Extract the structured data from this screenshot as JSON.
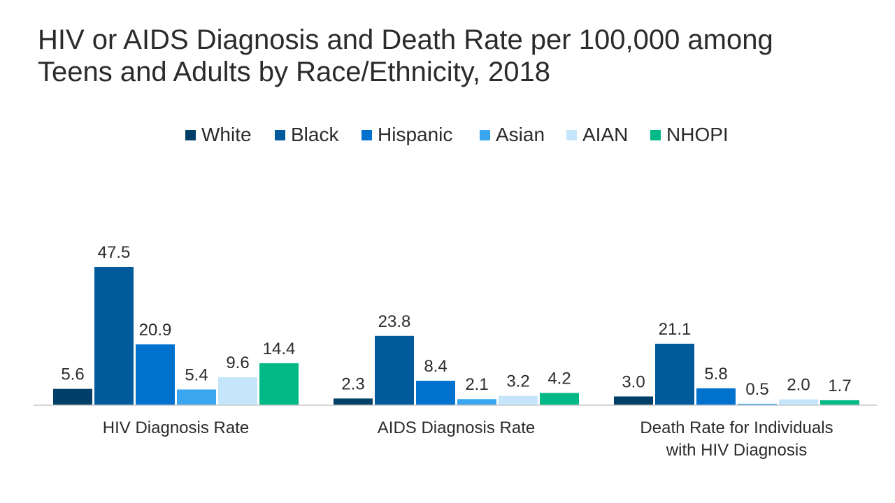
{
  "title_lines": [
    "HIV or AIDS Diagnosis and Death Rate per 100,000 among",
    "Teens and Adults by Race/Ethnicity, 2018"
  ],
  "colors": {
    "White": "#003f68",
    "Black": "#005a9c",
    "Hispanic": "#0072ce",
    "Asian": "#3aa6f0",
    "AIAN": "#c5e5fb",
    "NHOPI": "#00b986"
  },
  "chart_data": {
    "type": "bar",
    "title": "HIV or AIDS Diagnosis and Death Rate per 100,000 among Teens and Adults by Race/Ethnicity, 2018",
    "categories": [
      [
        "HIV Diagnosis Rate"
      ],
      [
        "AIDS Diagnosis Rate"
      ],
      [
        "Death Rate for Individuals",
        "with HIV Diagnosis"
      ]
    ],
    "series": [
      {
        "name": "White",
        "values": [
          5.6,
          2.3,
          3.0
        ],
        "labels": [
          "5.6",
          "2.3",
          "3.0"
        ]
      },
      {
        "name": "Black",
        "values": [
          47.5,
          23.8,
          21.1
        ],
        "labels": [
          "47.5",
          "23.8",
          "21.1"
        ]
      },
      {
        "name": "Hispanic",
        "values": [
          20.9,
          8.4,
          5.8
        ],
        "labels": [
          "20.9",
          "8.4",
          "5.8"
        ]
      },
      {
        "name": "Asian",
        "values": [
          5.4,
          2.1,
          0.5
        ],
        "labels": [
          "5.4",
          "2.1",
          "0.5"
        ]
      },
      {
        "name": "AIAN",
        "values": [
          9.6,
          3.2,
          2.0
        ],
        "labels": [
          "9.6",
          "3.2",
          "2.0"
        ]
      },
      {
        "name": "NHOPI",
        "values": [
          14.4,
          4.2,
          1.7
        ],
        "labels": [
          "14.4",
          "4.2",
          "1.7"
        ]
      }
    ],
    "ylim": [
      0,
      47.5
    ],
    "legend_position": "top",
    "grid": false,
    "data_labels": true
  }
}
